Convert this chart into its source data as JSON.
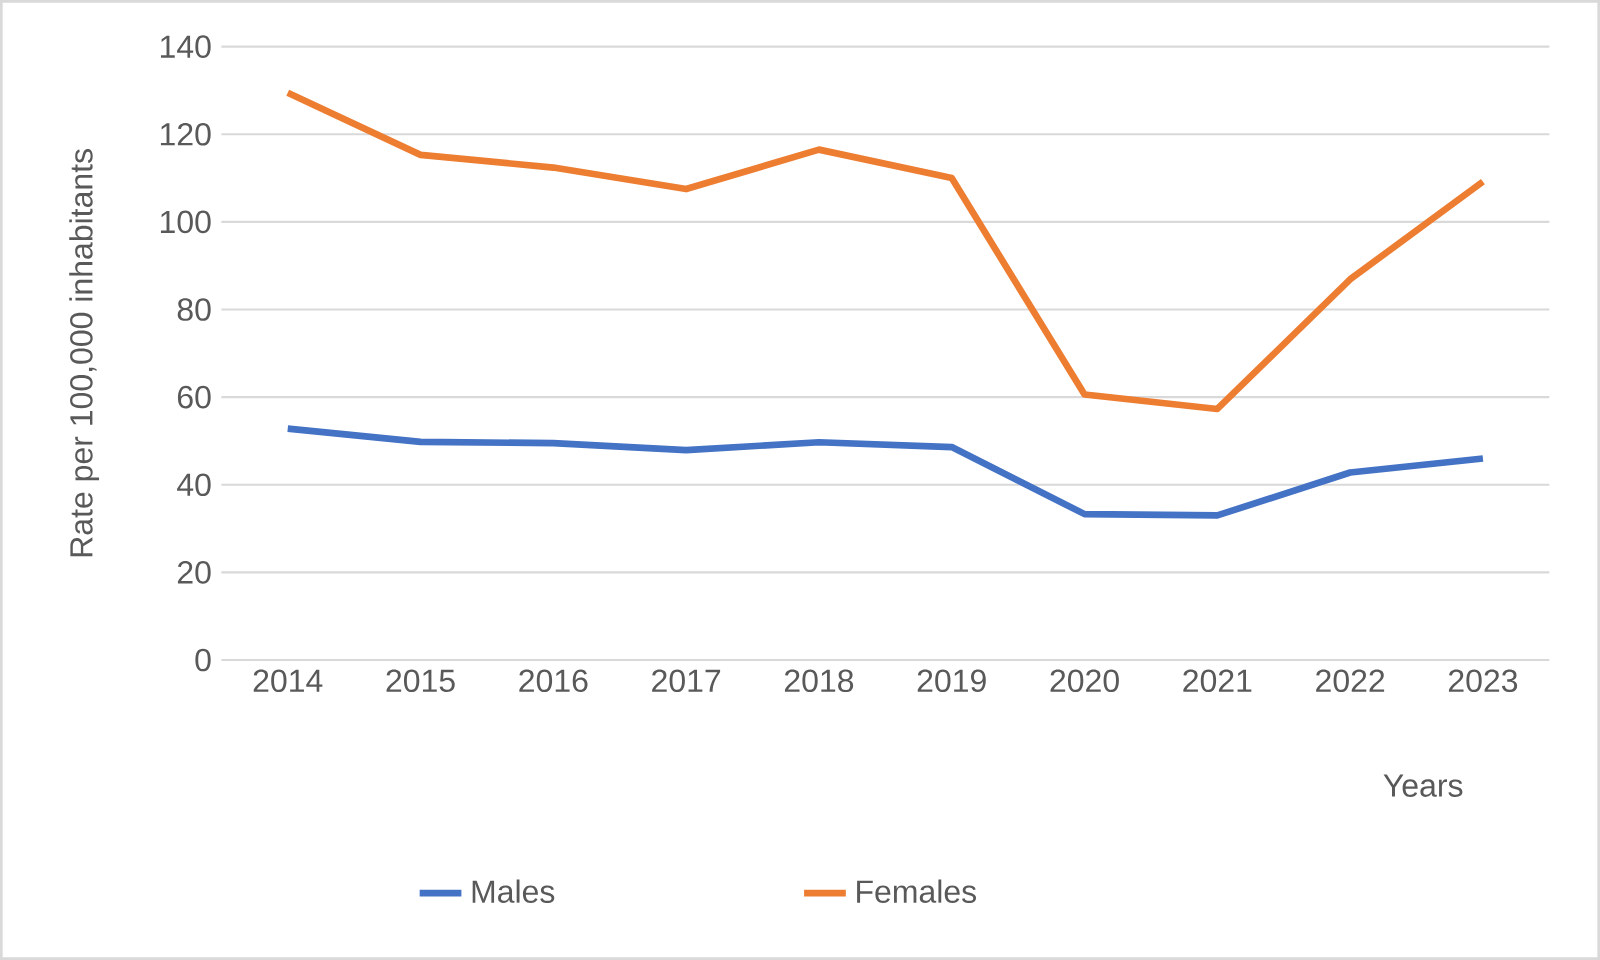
{
  "chart_data": {
    "type": "line",
    "xlabel": "Years",
    "ylabel": "Rate per 100,000 inhabitants",
    "categories": [
      "2014",
      "2015",
      "2016",
      "2017",
      "2018",
      "2019",
      "2020",
      "2021",
      "2022",
      "2023"
    ],
    "series": [
      {
        "name": "Males",
        "color": "#4472c4",
        "values": [
          52.8,
          49.8,
          49.5,
          47.9,
          49.7,
          48.6,
          33.3,
          33.0,
          42.8,
          46.0
        ]
      },
      {
        "name": "Females",
        "color": "#ed7d31",
        "values": [
          129.5,
          115.3,
          112.4,
          107.5,
          116.5,
          110.0,
          60.6,
          57.3,
          86.9,
          109.2
        ]
      }
    ],
    "ylim": [
      0,
      140
    ],
    "yticks": [
      0,
      20,
      40,
      60,
      80,
      100,
      120,
      140
    ],
    "grid": "y",
    "legend": "bottom",
    "marker": "none",
    "line_style": "solid"
  }
}
